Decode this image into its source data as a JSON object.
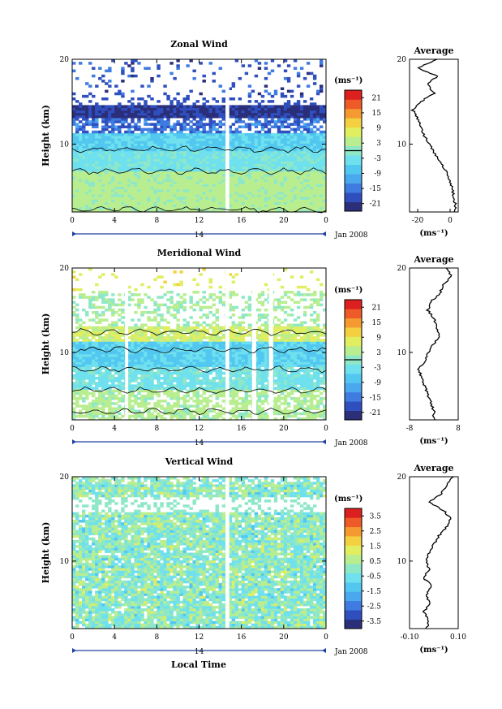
{
  "figure": {
    "xlabel": "Local Time",
    "date_label": "Jan 2008",
    "day_label": "14",
    "colorbar_unit": "(ms⁻¹)",
    "profile_unit": "(ms⁻¹)",
    "palette": [
      "#2b2f7a",
      "#2f4fbf",
      "#3f7be0",
      "#4aa8ee",
      "#52c8f0",
      "#6fe0ee",
      "#8ee8c8",
      "#b8ee90",
      "#e0ee60",
      "#f4d040",
      "#f49a30",
      "#ee5a28",
      "#dc2020"
    ]
  },
  "chart_data": [
    {
      "type": "heatmap",
      "title": "Zonal Wind",
      "ylabel": "Height (km)",
      "xticks": [
        "0",
        "4",
        "8",
        "12",
        "16",
        "20",
        "0"
      ],
      "yticks": [
        "10",
        "20"
      ],
      "xlim": [
        0,
        24
      ],
      "ylim": [
        2,
        20
      ],
      "colorbar": {
        "range": [
          -24,
          24
        ],
        "ticks": [
          "21",
          "15",
          "9",
          "3",
          "-3",
          "-9",
          "-15",
          "-21"
        ],
        "zero_line": true
      },
      "profile": {
        "title": "Average",
        "xlim": [
          -25,
          5
        ],
        "xticks": [
          "-20",
          "0"
        ],
        "yticks": [
          "10",
          "20"
        ],
        "heights": [
          2,
          3,
          4,
          5,
          6,
          7,
          8,
          9,
          10,
          11,
          12,
          13,
          14,
          15,
          16,
          17,
          18,
          19,
          20
        ],
        "values": [
          3,
          3,
          2,
          1,
          -1,
          -3,
          -6,
          -10,
          -13,
          -16,
          -18,
          -20,
          -23,
          -18,
          -10,
          -14,
          -8,
          -20,
          -8
        ]
      },
      "gaps": [
        {
          "t": 14.5,
          "w": 0.35
        }
      ]
    },
    {
      "type": "heatmap",
      "title": "Meridional Wind",
      "ylabel": "Height (km)",
      "xticks": [
        "0",
        "4",
        "8",
        "12",
        "16",
        "20",
        "0"
      ],
      "yticks": [
        "10",
        "20"
      ],
      "xlim": [
        0,
        24
      ],
      "ylim": [
        2,
        20
      ],
      "colorbar": {
        "range": [
          -24,
          24
        ],
        "ticks": [
          "21",
          "15",
          "9",
          "3",
          "-3",
          "-9",
          "-15",
          "-21"
        ],
        "zero_line": true
      },
      "profile": {
        "title": "Average",
        "xlim": [
          -8,
          8
        ],
        "xticks": [
          "-8",
          "8"
        ],
        "yticks": [
          "10",
          "20"
        ],
        "heights": [
          2,
          3,
          4,
          5,
          6,
          7,
          8,
          9,
          10,
          11,
          12,
          13,
          14,
          15,
          16,
          17,
          18,
          19,
          20
        ],
        "values": [
          0,
          0,
          -1,
          -2,
          -3,
          -4,
          -5,
          -3,
          -2,
          0,
          2,
          1,
          0,
          -2,
          -1,
          2,
          3,
          6,
          4
        ]
      },
      "gaps": [
        {
          "t": 5.0,
          "w": 0.3
        },
        {
          "t": 14.5,
          "w": 0.35
        },
        {
          "t": 17.0,
          "w": 0.4
        },
        {
          "t": 18.6,
          "w": 0.4
        }
      ]
    },
    {
      "type": "heatmap",
      "title": "Vertical Wind",
      "ylabel": "Height (km)",
      "xticks": [
        "0",
        "4",
        "8",
        "12",
        "16",
        "20",
        "0"
      ],
      "yticks": [
        "10",
        "20"
      ],
      "xlim": [
        0,
        24
      ],
      "ylim": [
        2,
        20
      ],
      "colorbar": {
        "range": [
          -4,
          4
        ],
        "ticks": [
          "3.5",
          "2.5",
          "1.5",
          "0.5",
          "-0.5",
          "-1.5",
          "-2.5",
          "-3.5"
        ],
        "zero_line": false
      },
      "profile": {
        "title": "Average",
        "xlim": [
          -0.1,
          0.1
        ],
        "xticks": [
          "-0.10",
          "0.10"
        ],
        "yticks": [
          "10",
          "20"
        ],
        "heights": [
          2,
          3,
          4,
          5,
          6,
          7,
          8,
          9,
          10,
          11,
          12,
          13,
          14,
          15,
          16,
          17,
          18,
          19,
          20
        ],
        "values": [
          -0.03,
          -0.02,
          -0.04,
          -0.02,
          -0.03,
          -0.01,
          -0.04,
          -0.02,
          -0.03,
          -0.02,
          0.0,
          0.02,
          0.05,
          0.07,
          0.04,
          -0.02,
          0.03,
          0.05,
          0.08
        ]
      },
      "gaps": [
        {
          "t": 14.5,
          "w": 0.35
        }
      ]
    }
  ]
}
